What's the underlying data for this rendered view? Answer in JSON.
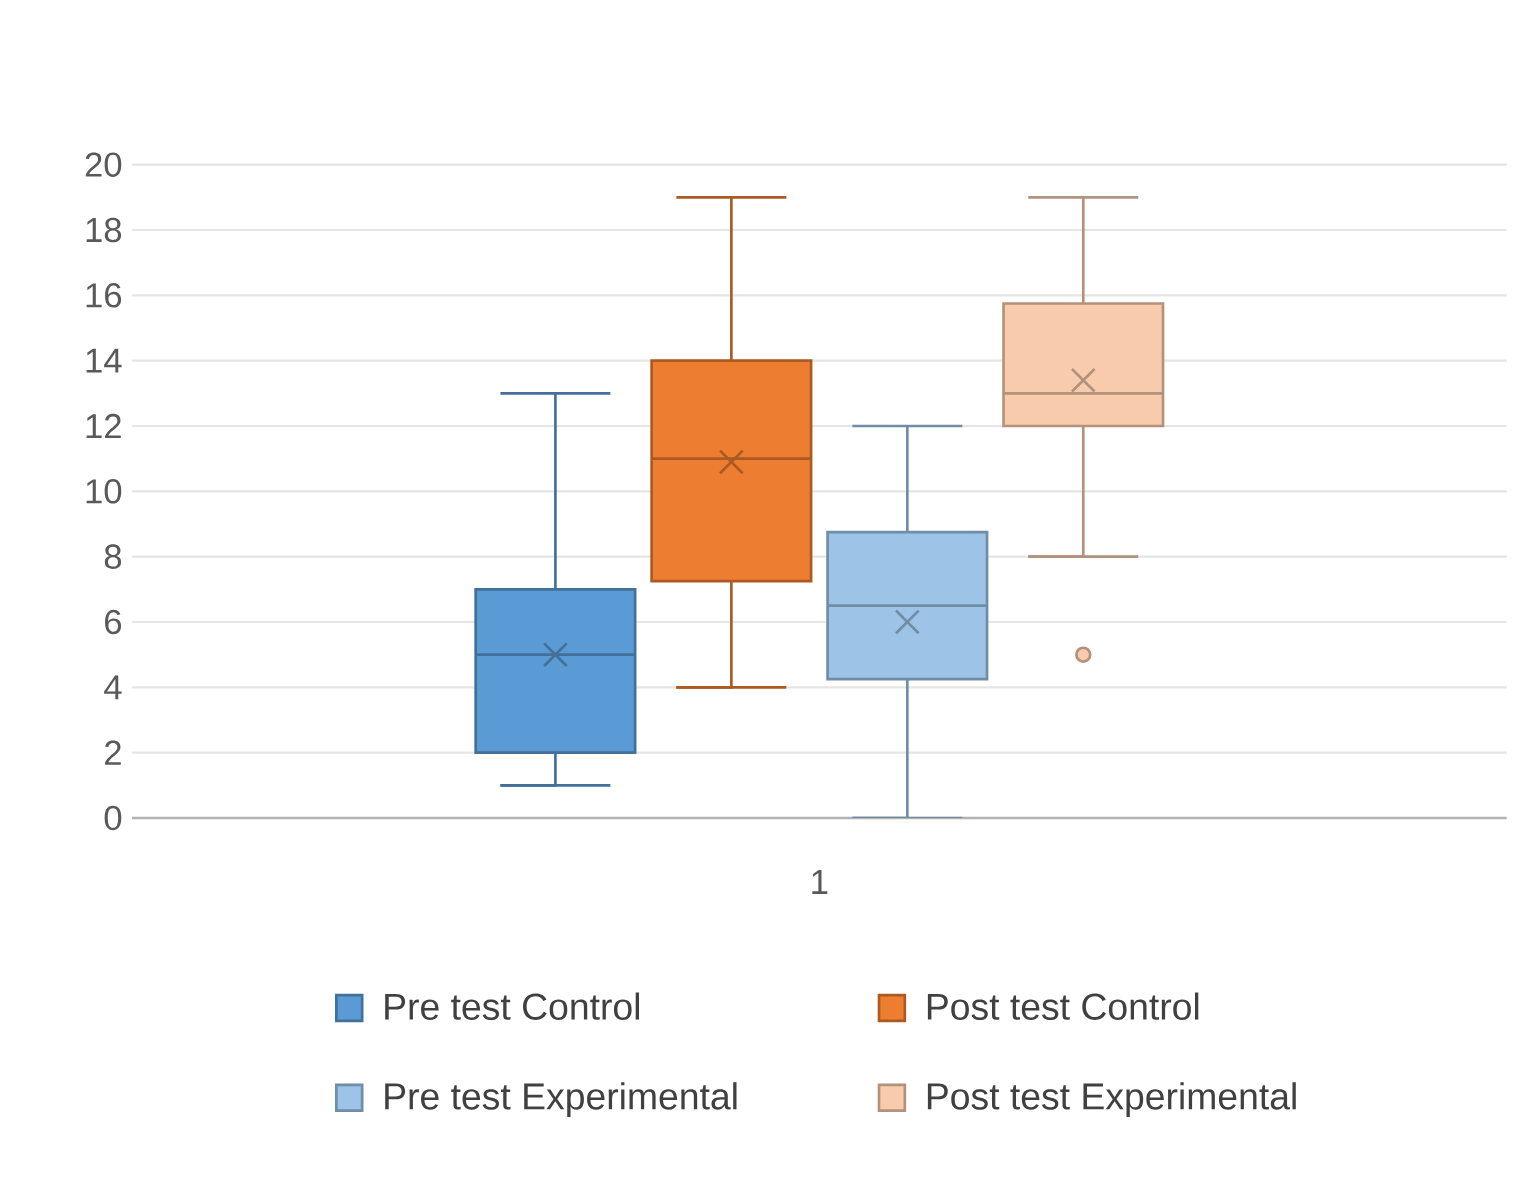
{
  "chart_data": {
    "type": "box",
    "categories": [
      "1"
    ],
    "ylim": [
      0,
      20
    ],
    "yticks": [
      0,
      2,
      4,
      6,
      8,
      10,
      12,
      14,
      16,
      18,
      20
    ],
    "grid": "y",
    "legend": "bottom",
    "series": [
      {
        "name": "Pre test Control",
        "color": "#5b9bd5",
        "boxes": [
          {
            "low": 1,
            "q1": 2,
            "median": 5,
            "q3": 7,
            "high": 13,
            "mean": 5
          }
        ]
      },
      {
        "name": "Post test Control",
        "color": "#ed7d31",
        "boxes": [
          {
            "low": 4,
            "q1": 7.25,
            "median": 11,
            "q3": 14,
            "high": 19,
            "mean": 10.9
          }
        ]
      },
      {
        "name": "Pre test Experimental",
        "color": "#9dc3e6",
        "boxes": [
          {
            "low": 0,
            "q1": 4.25,
            "median": 6.5,
            "q3": 8.75,
            "high": 12,
            "mean": 6
          }
        ]
      },
      {
        "name": "Post test Experimental",
        "color": "#f8cbad",
        "boxes": [
          {
            "low": 8,
            "q1": 12,
            "median": 13,
            "q3": 15.75,
            "high": 19,
            "mean": 13.4,
            "outliers": [
              5
            ]
          }
        ]
      }
    ]
  }
}
